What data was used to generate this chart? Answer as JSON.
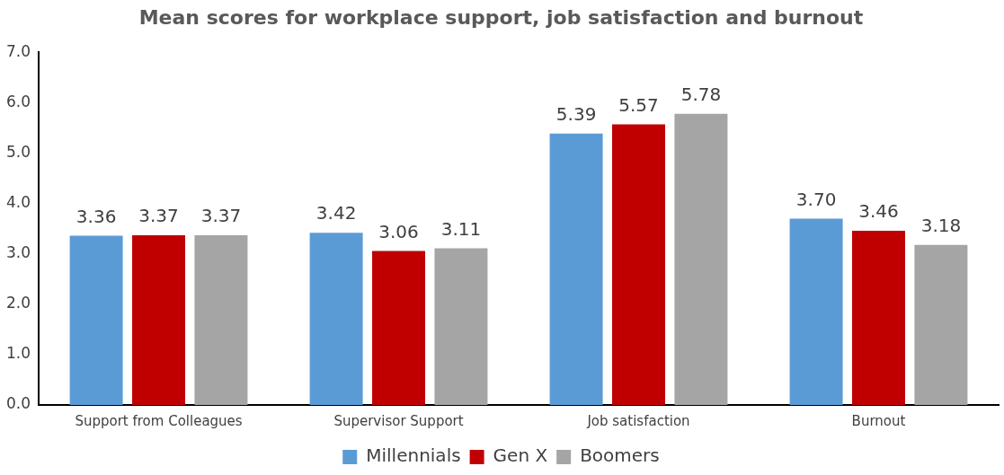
{
  "chart_data": {
    "type": "bar",
    "title": "Mean scores for workplace support, job satisfaction and burnout",
    "categories": [
      "Support from Colleagues",
      "Supervisor Support",
      "Job satisfaction",
      "Burnout"
    ],
    "series": [
      {
        "name": "Millennials",
        "color": "#5b9bd5",
        "values": [
          3.36,
          3.42,
          5.39,
          3.7
        ],
        "value_labels": [
          "3.36",
          "3.42",
          "5.39",
          "3.70"
        ]
      },
      {
        "name": "Gen X",
        "color": "#c00000",
        "values": [
          3.37,
          3.06,
          5.57,
          3.46
        ],
        "value_labels": [
          "3.37",
          "3.06",
          "5.57",
          "3.46"
        ]
      },
      {
        "name": "Boomers",
        "color": "#a5a5a5",
        "values": [
          3.37,
          3.11,
          5.78,
          3.18
        ],
        "value_labels": [
          "3.37",
          "3.11",
          "5.78",
          "3.18"
        ]
      }
    ],
    "ylim": [
      0,
      7
    ],
    "yticks": [
      {
        "value": 0,
        "label": "0.0"
      },
      {
        "value": 1,
        "label": "1.0"
      },
      {
        "value": 2,
        "label": "2.0"
      },
      {
        "value": 3,
        "label": "3.0"
      },
      {
        "value": 4,
        "label": "4.0"
      },
      {
        "value": 5,
        "label": "5.0"
      },
      {
        "value": 6,
        "label": "6.0"
      },
      {
        "value": 7,
        "label": "7.0"
      }
    ],
    "grid": false,
    "legend": "bottom"
  }
}
